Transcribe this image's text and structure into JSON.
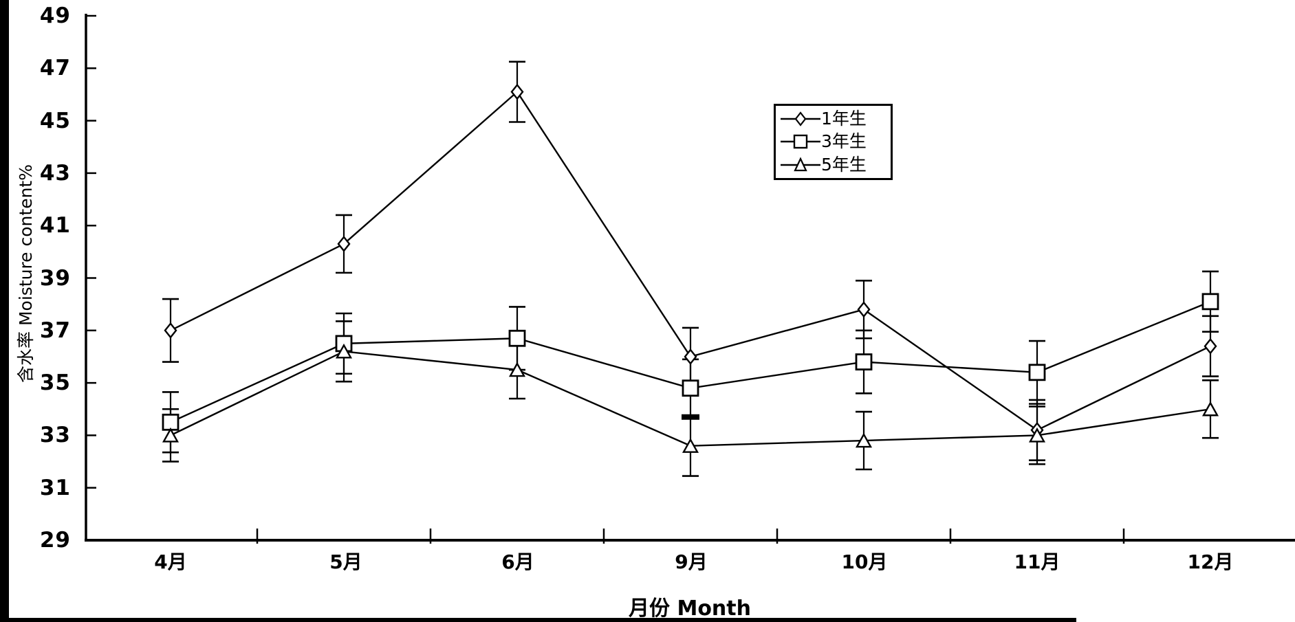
{
  "figure": {
    "background": "#ffffff",
    "ink": "#000000"
  },
  "chart_data": {
    "type": "line",
    "title": "",
    "xlabel": "月份 Month",
    "ylabel": "含水率 Moisture content%",
    "x_categories": [
      "4月",
      "5月",
      "6月",
      "9月",
      "10月",
      "11月",
      "12月"
    ],
    "y_ticks": [
      49,
      47,
      45,
      43,
      41,
      39,
      37,
      35,
      33,
      31,
      29
    ],
    "ylim": [
      29,
      49
    ],
    "grid": false,
    "error_bars": true,
    "legend_position": "inside-top-center-right",
    "series": [
      {
        "name": "1年生",
        "marker": "diamond",
        "values": [
          37.0,
          40.3,
          46.1,
          36.0,
          37.8,
          33.2,
          36.4
        ],
        "errors": [
          1.2,
          1.1,
          1.15,
          1.1,
          1.1,
          1.15,
          1.15
        ]
      },
      {
        "name": "3年生",
        "marker": "square",
        "values": [
          33.5,
          36.5,
          36.7,
          34.8,
          35.8,
          35.4,
          38.1
        ],
        "errors": [
          1.15,
          1.15,
          1.2,
          1.1,
          1.2,
          1.2,
          1.15
        ],
        "bold_lower_cap_index": 3
      },
      {
        "name": "5年生",
        "marker": "triangle",
        "values": [
          33.0,
          36.2,
          35.5,
          32.6,
          32.8,
          33.0,
          34.0
        ],
        "errors": [
          1.0,
          1.15,
          1.1,
          1.15,
          1.1,
          1.1,
          1.1
        ]
      }
    ]
  }
}
